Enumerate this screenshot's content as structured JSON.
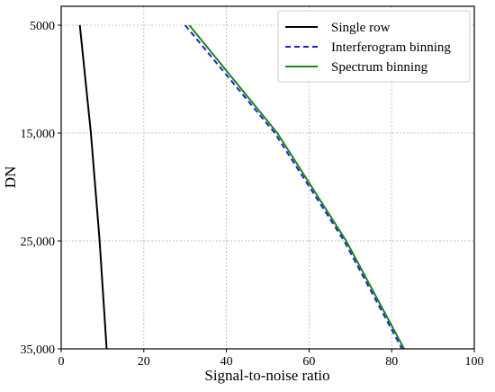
{
  "chart_data": {
    "type": "line",
    "title": "",
    "xlabel": "Signal-to-noise ratio",
    "ylabel": "DN",
    "xlim": [
      0,
      100
    ],
    "ylim": [
      5000,
      35000
    ],
    "y_inverted": true,
    "grid": true,
    "legend_position": "top-right",
    "xticks": [
      0,
      20,
      40,
      60,
      80,
      100
    ],
    "xtick_labels": [
      "0",
      "20",
      "40",
      "60",
      "80",
      "100"
    ],
    "yticks": [
      5000,
      15000,
      25000,
      35000
    ],
    "ytick_labels": [
      "5000",
      "15,000",
      "25,000",
      "35,000"
    ],
    "series": [
      {
        "name": "Single row",
        "color": "#000000",
        "dash": "solid",
        "x": [
          4.5,
          7.2,
          9.3,
          11.0
        ],
        "y": [
          5000,
          15000,
          25000,
          35000
        ]
      },
      {
        "name": "Interferogram binning",
        "color": "#1f1fd6",
        "dash": "dashed",
        "x": [
          30.0,
          51.7,
          68.5,
          82.5
        ],
        "y": [
          5000,
          15000,
          25000,
          35000
        ]
      },
      {
        "name": "Spectrum binning",
        "color": "#188818",
        "dash": "solid",
        "x": [
          31.0,
          52.3,
          69.0,
          83.0
        ],
        "y": [
          5000,
          15000,
          25000,
          35000
        ]
      }
    ]
  }
}
